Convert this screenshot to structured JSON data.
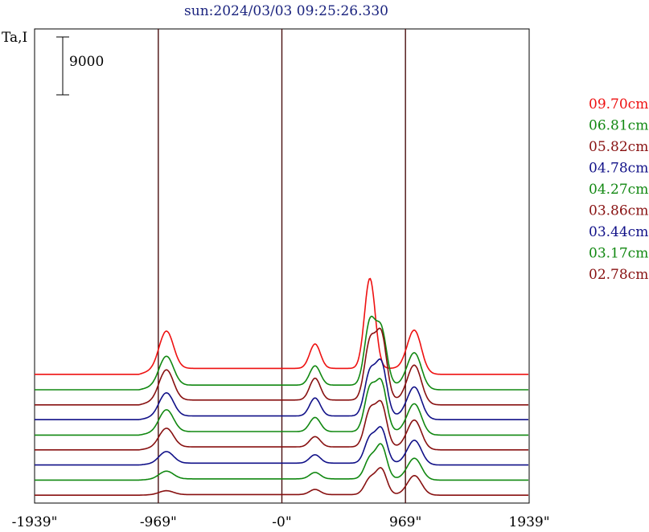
{
  "chart_data": {
    "type": "line",
    "title": "sun:2024/03/03 09:25:26.330",
    "ylabel": "Ta,I",
    "scale_bar_label": "9000",
    "scale_bar_value": 9000,
    "x_ticks": [
      {
        "value": -1939,
        "label": "-1939\""
      },
      {
        "value": -969,
        "label": "-969\""
      },
      {
        "value": 0,
        "label": "-0\""
      },
      {
        "value": 969,
        "label": "969\""
      },
      {
        "value": 1939,
        "label": "1939\""
      }
    ],
    "xlim": [
      -1939,
      1939
    ],
    "vertical_lines": [
      -969,
      0,
      969
    ],
    "legend_position": "right",
    "series": [
      {
        "name": "09.70cm",
        "color": "#ee1111",
        "baseline": 14900,
        "peaks": [
          [
            -905,
            5800
          ],
          [
            260,
            3800
          ],
          [
            690,
            14000
          ],
          [
            1040,
            6400
          ]
        ]
      },
      {
        "name": "06.81cm",
        "color": "#118811",
        "baseline": 12500,
        "peaks": [
          [
            -905,
            4500
          ],
          [
            260,
            3000
          ],
          [
            690,
            9600
          ],
          [
            780,
            8400
          ],
          [
            1040,
            5400
          ]
        ]
      },
      {
        "name": "05.82cm",
        "color": "#881111",
        "baseline": 10150,
        "peaks": [
          [
            -905,
            4700
          ],
          [
            260,
            3400
          ],
          [
            690,
            8800
          ],
          [
            780,
            10000
          ],
          [
            1040,
            5800
          ]
        ]
      },
      {
        "name": "04.78cm",
        "color": "#111188",
        "baseline": 7850,
        "peaks": [
          [
            -905,
            3600
          ],
          [
            260,
            2800
          ],
          [
            690,
            6600
          ],
          [
            780,
            8000
          ],
          [
            1040,
            4800
          ]
        ]
      },
      {
        "name": "04.27cm",
        "color": "#118811",
        "baseline": 5450,
        "peaks": [
          [
            -905,
            3400
          ],
          [
            260,
            2200
          ],
          [
            690,
            6500
          ],
          [
            780,
            7400
          ],
          [
            1040,
            4600
          ]
        ]
      },
      {
        "name": "03.86cm",
        "color": "#881111",
        "baseline": 3150,
        "peaks": [
          [
            -905,
            2900
          ],
          [
            260,
            1600
          ],
          [
            690,
            5500
          ],
          [
            780,
            6500
          ],
          [
            1040,
            4400
          ]
        ]
      },
      {
        "name": "03.44cm",
        "color": "#111188",
        "baseline": 800,
        "peaks": [
          [
            -905,
            1800
          ],
          [
            260,
            1300
          ],
          [
            690,
            3800
          ],
          [
            780,
            5200
          ],
          [
            1040,
            3700
          ]
        ]
      },
      {
        "name": "03.17cm",
        "color": "#118811",
        "baseline": -1550,
        "peaks": [
          [
            -905,
            1200
          ],
          [
            260,
            1000
          ],
          [
            690,
            3100
          ],
          [
            780,
            5100
          ],
          [
            1040,
            3300
          ]
        ]
      },
      {
        "name": "02.78cm",
        "color": "#881111",
        "baseline": -3900,
        "peaks": [
          [
            -905,
            600
          ],
          [
            260,
            800
          ],
          [
            690,
            2400
          ],
          [
            780,
            3900
          ],
          [
            1040,
            3000
          ]
        ]
      }
    ]
  }
}
